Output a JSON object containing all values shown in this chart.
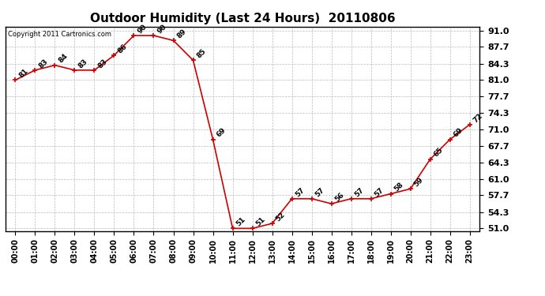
{
  "title": "Outdoor Humidity (Last 24 Hours)  20110806",
  "copyright": "Copyright 2011 Cartronics.com",
  "hours": [
    "00:00",
    "01:00",
    "02:00",
    "03:00",
    "04:00",
    "05:00",
    "06:00",
    "07:00",
    "08:00",
    "09:00",
    "10:00",
    "11:00",
    "12:00",
    "13:00",
    "14:00",
    "15:00",
    "16:00",
    "17:00",
    "18:00",
    "19:00",
    "20:00",
    "21:00",
    "22:00",
    "23:00"
  ],
  "values": [
    81,
    83,
    84,
    83,
    83,
    86,
    90,
    90,
    89,
    85,
    69,
    51,
    51,
    52,
    57,
    57,
    56,
    57,
    57,
    58,
    59,
    65,
    69,
    72
  ],
  "line_color": "#cc0000",
  "marker_color": "#cc0000",
  "bg_color": "#ffffff",
  "grid_color": "#bbbbbb",
  "yticks": [
    51.0,
    54.3,
    57.7,
    61.0,
    64.3,
    67.7,
    71.0,
    74.3,
    77.7,
    81.0,
    84.3,
    87.7,
    91.0
  ],
  "ylim_min": 50.5,
  "ylim_max": 91.8,
  "title_fontsize": 11,
  "label_fontsize": 6.5,
  "copyright_fontsize": 6,
  "ytick_fontsize": 8,
  "xtick_fontsize": 7
}
